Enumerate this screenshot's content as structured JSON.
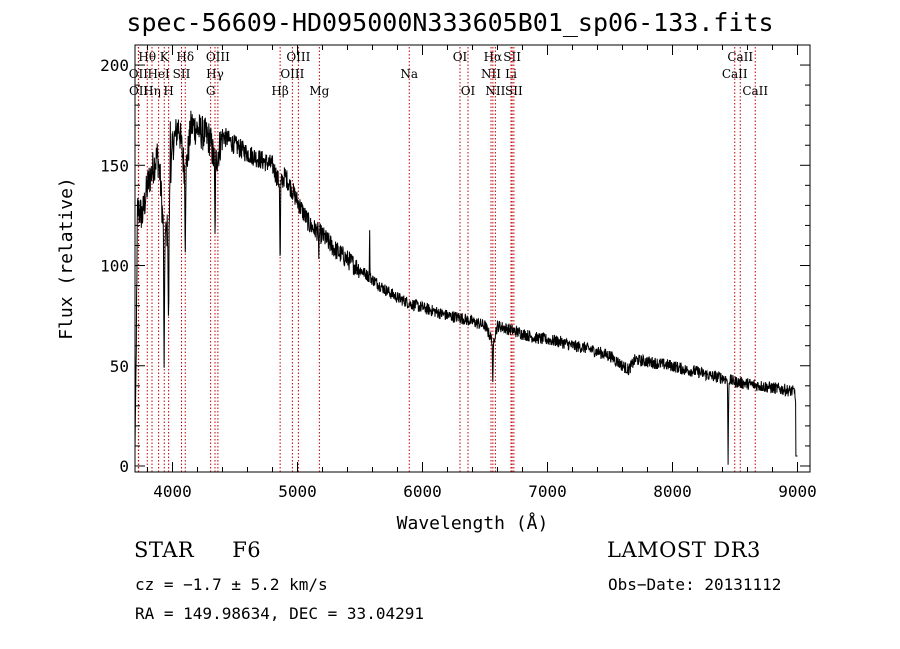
{
  "chart_data": {
    "type": "line",
    "title": "spec-56609-HD095000N333605B01_sp06-133.fits",
    "xlabel": "Wavelength (Å)",
    "ylabel": "Flux (relative)",
    "xlim": [
      3700,
      9100
    ],
    "ylim": [
      -3,
      210
    ],
    "x_ticks": [
      4000,
      5000,
      6000,
      7000,
      8000,
      9000
    ],
    "x_tick_labels": [
      "4000",
      "5000",
      "6000",
      "7000",
      "8000",
      "9000"
    ],
    "y_ticks": [
      0,
      50,
      100,
      150,
      200
    ],
    "y_tick_labels": [
      "0",
      "50",
      "100",
      "150",
      "200"
    ],
    "spectrum_anchors": {
      "wavelength": [
        3700,
        3720,
        3760,
        3800,
        3850,
        3880,
        3900,
        3933,
        3968,
        4000,
        4050,
        4102,
        4150,
        4200,
        4300,
        4340,
        4400,
        4500,
        4600,
        4700,
        4800,
        4861,
        4900,
        5000,
        5100,
        5200,
        5300,
        5400,
        5500,
        5600,
        5700,
        5800,
        5900,
        6000,
        6100,
        6200,
        6300,
        6400,
        6500,
        6563,
        6600,
        6700,
        6800,
        6900,
        7000,
        7100,
        7200,
        7300,
        7400,
        7500,
        7600,
        7650,
        7700,
        7800,
        7900,
        8000,
        8100,
        8200,
        8300,
        8400,
        8450,
        8500,
        8600,
        8700,
        8800,
        8900,
        8980,
        9000
      ],
      "flux": [
        8,
        128,
        125,
        140,
        150,
        155,
        145,
        112,
        120,
        160,
        170,
        145,
        170,
        168,
        163,
        150,
        165,
        160,
        156,
        153,
        150,
        140,
        145,
        132,
        120,
        115,
        108,
        103,
        98,
        93,
        88,
        84,
        81,
        79,
        77,
        75,
        74,
        72,
        70,
        62,
        70,
        68,
        66,
        64,
        63,
        62,
        60,
        59,
        57,
        55,
        50,
        48,
        53,
        52,
        51,
        50,
        48,
        47,
        45,
        44,
        43,
        42,
        41,
        40,
        39,
        38,
        37,
        5
      ]
    },
    "absorption_features": [
      {
        "wavelength": 3933,
        "depth": 75
      },
      {
        "wavelength": 3968,
        "depth": 55
      },
      {
        "wavelength": 4102,
        "depth": 35
      },
      {
        "wavelength": 4340,
        "depth": 38
      },
      {
        "wavelength": 4861,
        "depth": 45
      },
      {
        "wavelength": 5170,
        "depth": 10
      },
      {
        "wavelength": 6563,
        "depth": 25
      },
      {
        "wavelength": 8445,
        "depth": 40
      }
    ],
    "emission_features": [
      {
        "wavelength": 3983,
        "height": 40
      },
      {
        "wavelength": 5577,
        "height": 25
      }
    ],
    "spectral_lines": [
      {
        "label": "Hθ",
        "wavelength": 3798,
        "row": 1
      },
      {
        "label": "OII",
        "wavelength": 3727,
        "row": 2
      },
      {
        "label": "OII",
        "wavelength": 3729,
        "row": 3
      },
      {
        "label": "Hη",
        "wavelength": 3836,
        "row": 3
      },
      {
        "label": "HeI",
        "wavelength": 3889,
        "row": 2
      },
      {
        "label": "K",
        "wavelength": 3934,
        "row": 1
      },
      {
        "label": "H",
        "wavelength": 3969,
        "row": 3
      },
      {
        "label": "SII",
        "wavelength": 4072,
        "row": 2
      },
      {
        "label": "Hδ",
        "wavelength": 4102,
        "row": 1
      },
      {
        "label": "OIII",
        "wavelength": 4363,
        "row": 1
      },
      {
        "label": "Hγ",
        "wavelength": 4340,
        "row": 2
      },
      {
        "label": "G",
        "wavelength": 4305,
        "row": 3
      },
      {
        "label": "Hβ",
        "wavelength": 4861,
        "row": 3
      },
      {
        "label": "OIII",
        "wavelength": 5007,
        "row": 1
      },
      {
        "label": "OIII",
        "wavelength": 4959,
        "row": 2
      },
      {
        "label": "Mg",
        "wavelength": 5175,
        "row": 3
      },
      {
        "label": "Na",
        "wavelength": 5894,
        "row": 2
      },
      {
        "label": "OI",
        "wavelength": 6300,
        "row": 1
      },
      {
        "label": "OI",
        "wavelength": 6364,
        "row": 3
      },
      {
        "label": "Hα",
        "wavelength": 6563,
        "row": 1
      },
      {
        "label": "NII",
        "wavelength": 6548,
        "row": 2
      },
      {
        "label": "NII",
        "wavelength": 6583,
        "row": 3
      },
      {
        "label": "SII",
        "wavelength": 6717,
        "row": 1
      },
      {
        "label": "Li",
        "wavelength": 6708,
        "row": 2
      },
      {
        "label": "SII",
        "wavelength": 6731,
        "row": 3
      },
      {
        "label": "CaII",
        "wavelength": 8542,
        "row": 1
      },
      {
        "label": "CaII",
        "wavelength": 8498,
        "row": 2
      },
      {
        "label": "CaII",
        "wavelength": 8662,
        "row": 3
      }
    ]
  },
  "info": {
    "object_class": "STAR",
    "subclass": "F6",
    "survey": "LAMOST DR3",
    "redshift_text": "cz = −1.7 ± 5.2 km/s",
    "obs_date_text": "Obs−Date: 20131112",
    "radec_text": "RA = 149.98634, DEC =  33.04291"
  }
}
